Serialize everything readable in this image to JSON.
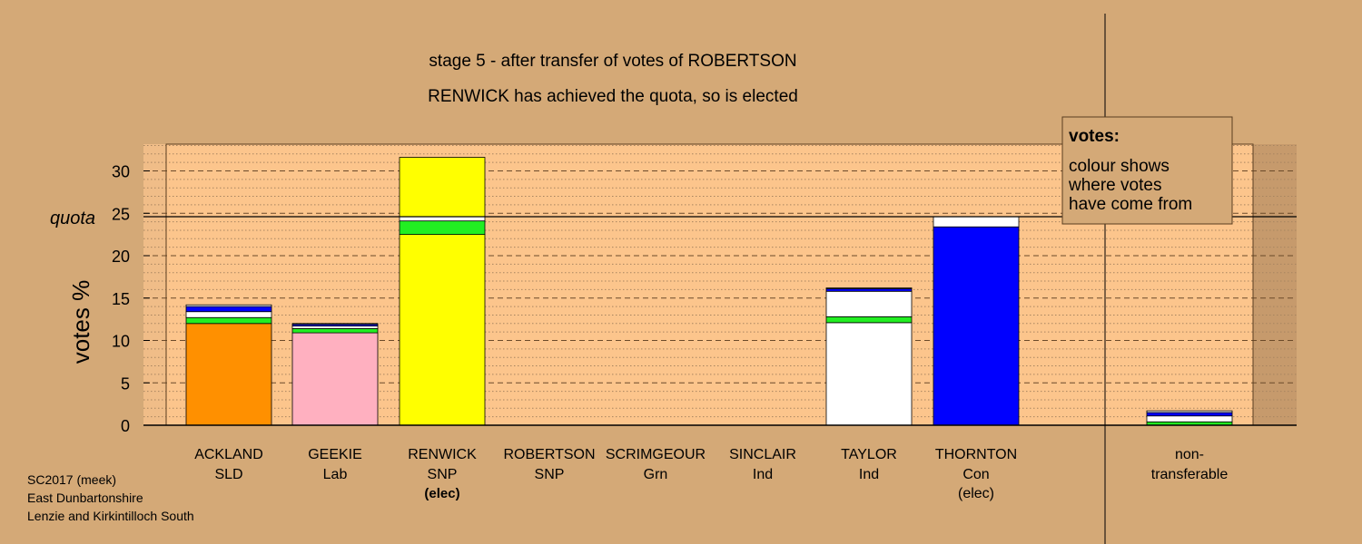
{
  "chart_data": {
    "type": "bar",
    "stacked": true,
    "title": "stage 5 - after transfer of votes of ROBERTSON",
    "subtitle": "RENWICK has achieved the quota, so is elected",
    "ylabel": "votes %",
    "ylim": [
      0,
      33
    ],
    "yticks": [
      0,
      5,
      10,
      15,
      20,
      25,
      30
    ],
    "quota": 24.6,
    "quota_label": "quota",
    "grid": true,
    "colors": {
      "orange": "#ff9000",
      "pink": "#ffb0c0",
      "yellow": "#ffff00",
      "green": "#22ee22",
      "white": "#ffffff",
      "blue": "#0000ff",
      "background": "#d4a977",
      "plot": "#fcc58c"
    },
    "categories": [
      {
        "name": "ACKLAND",
        "party": "SLD",
        "note": "",
        "segments": [
          {
            "color": "orange",
            "value": 12.0
          },
          {
            "color": "green",
            "value": 0.7
          },
          {
            "color": "white",
            "value": 0.7
          },
          {
            "color": "blue",
            "value": 0.6
          },
          {
            "color": "white",
            "value": 0.2
          }
        ]
      },
      {
        "name": "GEEKIE",
        "party": "Lab",
        "note": "",
        "segments": [
          {
            "color": "pink",
            "value": 10.9
          },
          {
            "color": "green",
            "value": 0.5
          },
          {
            "color": "white",
            "value": 0.3
          },
          {
            "color": "blue",
            "value": 0.2
          },
          {
            "color": "white",
            "value": 0.1
          }
        ]
      },
      {
        "name": "RENWICK",
        "party": "SNP",
        "note": "(elec)",
        "segments": [
          {
            "color": "yellow",
            "value": 22.5
          },
          {
            "color": "green",
            "value": 1.6
          },
          {
            "color": "white",
            "value": 0.5
          },
          {
            "color": "yellow",
            "value": 7.0
          }
        ]
      },
      {
        "name": "ROBERTSON",
        "party": "SNP",
        "note": "",
        "segments": []
      },
      {
        "name": "SCRIMGEOUR",
        "party": "Grn",
        "note": "",
        "segments": []
      },
      {
        "name": "SINCLAIR",
        "party": "Ind",
        "note": "",
        "segments": []
      },
      {
        "name": "TAYLOR",
        "party": "Ind",
        "note": "",
        "segments": [
          {
            "color": "white",
            "value": 12.1
          },
          {
            "color": "green",
            "value": 0.7
          },
          {
            "color": "white",
            "value": 3.0
          },
          {
            "color": "blue",
            "value": 0.3
          },
          {
            "color": "white",
            "value": 0.1
          }
        ]
      },
      {
        "name": "THORNTON",
        "party": "Con",
        "note": "(elec)",
        "segments": [
          {
            "color": "blue",
            "value": 23.4
          },
          {
            "color": "white",
            "value": 1.2
          }
        ]
      }
    ],
    "nontransferable": {
      "label_line1": "non-",
      "label_line2": "transferable",
      "segments": [
        {
          "color": "green",
          "value": 0.4
        },
        {
          "color": "white",
          "value": 0.7
        },
        {
          "color": "blue",
          "value": 0.4
        },
        {
          "color": "white",
          "value": 0.2
        }
      ]
    }
  },
  "legend": {
    "title": "votes:",
    "lines": [
      "colour shows",
      "where votes",
      "have come from"
    ]
  },
  "footer": {
    "lines": [
      "SC2017 (meek)",
      "East Dunbartonshire",
      "Lenzie and Kirkintilloch South"
    ]
  }
}
